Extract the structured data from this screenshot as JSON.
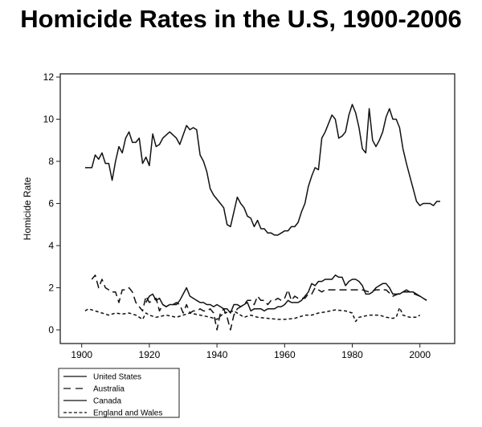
{
  "chart_data": {
    "type": "line",
    "title": "Homicide Rates in the U.S, 1900-2006",
    "xlabel": "",
    "ylabel": "Homicide Rate",
    "xlim": [
      1895,
      2011
    ],
    "ylim": [
      -0.6,
      12.2
    ],
    "xticks": [
      1900,
      1920,
      1940,
      1960,
      1980,
      2000
    ],
    "yticks": [
      0,
      2,
      4,
      6,
      8,
      10,
      12
    ],
    "grid": false,
    "legend_position": "bottom-left",
    "series": [
      {
        "name": "United States",
        "dash": "solid",
        "x": [
          1901,
          1903,
          1904,
          1905,
          1906,
          1907,
          1908,
          1909,
          1910,
          1911,
          1912,
          1913,
          1914,
          1915,
          1916,
          1917,
          1918,
          1919,
          1920,
          1921,
          1922,
          1923,
          1924,
          1926,
          1928,
          1929,
          1931,
          1932,
          1933,
          1934,
          1935,
          1936,
          1937,
          1938,
          1939,
          1941,
          1942,
          1943,
          1944,
          1946,
          1947,
          1948,
          1949,
          1950,
          1951,
          1952,
          1953,
          1954,
          1955,
          1956,
          1957,
          1958,
          1959,
          1960,
          1961,
          1962,
          1963,
          1964,
          1965,
          1966,
          1967,
          1968,
          1969,
          1970,
          1971,
          1972,
          1973,
          1974,
          1975,
          1976,
          1977,
          1978,
          1979,
          1980,
          1981,
          1982,
          1983,
          1984,
          1985,
          1986,
          1987,
          1988,
          1989,
          1990,
          1991,
          1992,
          1993,
          1994,
          1995,
          1996,
          1997,
          1998,
          1999,
          2000,
          2001,
          2002,
          2003,
          2004,
          2005,
          2006
        ],
        "y": [
          7.7,
          7.7,
          8.3,
          8.1,
          8.4,
          7.9,
          7.9,
          7.1,
          8.0,
          8.7,
          8.4,
          9.1,
          9.4,
          8.9,
          8.9,
          9.1,
          7.9,
          8.2,
          7.8,
          9.3,
          8.7,
          8.8,
          9.1,
          9.4,
          9.1,
          8.8,
          9.7,
          9.5,
          9.6,
          9.5,
          8.3,
          8.0,
          7.5,
          6.7,
          6.4,
          6.0,
          5.8,
          5.0,
          4.9,
          6.3,
          6.0,
          5.8,
          5.4,
          5.3,
          4.9,
          5.2,
          4.8,
          4.8,
          4.6,
          4.6,
          4.5,
          4.5,
          4.6,
          4.7,
          4.7,
          4.9,
          4.9,
          5.1,
          5.6,
          6.0,
          6.8,
          7.3,
          7.7,
          7.6,
          9.1,
          9.4,
          9.8,
          10.2,
          10.0,
          9.1,
          9.2,
          9.4,
          10.2,
          10.7,
          10.3,
          9.6,
          8.6,
          8.4,
          10.5,
          9.0,
          8.7,
          9.0,
          9.4,
          10.1,
          10.5,
          10.0,
          10.0,
          9.6,
          8.6,
          7.9,
          7.3,
          6.7,
          6.1,
          5.9,
          6.0,
          6.0,
          6.0,
          5.9,
          6.1,
          6.1
        ]
      },
      {
        "name": "Australia",
        "dash": "long-dash",
        "x": [
          1903,
          1904,
          1905,
          1906,
          1907,
          1908,
          1909,
          1910,
          1911,
          1912,
          1913,
          1914,
          1915,
          1916,
          1917,
          1918,
          1919,
          1920,
          1921,
          1922,
          1923,
          1924,
          1925,
          1926,
          1927,
          1928,
          1929,
          1930,
          1931,
          1932,
          1933,
          1934,
          1935,
          1936,
          1937,
          1938,
          1939,
          1940,
          1941,
          1942,
          1943,
          1944,
          1945,
          1946,
          1947,
          1948,
          1949,
          1950,
          1951,
          1952,
          1953,
          1954,
          1955,
          1956,
          1957,
          1958,
          1959,
          1960,
          1961,
          1962,
          1963,
          1964,
          1965,
          1966,
          1967,
          1968,
          1969,
          1970,
          1971,
          1972,
          1973,
          1975,
          1977,
          1979,
          1981,
          1983,
          1985,
          1987,
          1990,
          1992,
          1995,
          1997,
          2000,
          2002
        ],
        "y": [
          2.4,
          2.6,
          2.0,
          2.4,
          2.0,
          1.9,
          1.8,
          1.8,
          1.3,
          1.9,
          1.9,
          2.0,
          1.8,
          1.3,
          1.1,
          0.9,
          1.6,
          1.3,
          1.4,
          1.5,
          0.9,
          1.2,
          1.1,
          1.2,
          1.2,
          1.3,
          1.2,
          0.8,
          1.2,
          0.8,
          0.9,
          0.9,
          1.0,
          0.9,
          0.9,
          1.0,
          0.8,
          0.0,
          0.8,
          1.0,
          0.6,
          0.0,
          0.7,
          1.0,
          1.1,
          1.2,
          1.4,
          1.4,
          1.2,
          1.6,
          1.4,
          1.4,
          1.2,
          1.4,
          1.4,
          1.5,
          1.4,
          1.5,
          1.9,
          1.4,
          1.6,
          1.5,
          1.5,
          1.5,
          1.7,
          1.7,
          2.0,
          1.9,
          1.8,
          1.9,
          1.9,
          1.9,
          1.9,
          1.9,
          1.9,
          1.9,
          1.8,
          1.9,
          1.9,
          1.6,
          1.8,
          1.8,
          1.6,
          1.4
        ]
      },
      {
        "name": "Canada",
        "dash": "solid",
        "x": [
          1919,
          1920,
          1921,
          1922,
          1923,
          1924,
          1925,
          1926,
          1927,
          1928,
          1929,
          1930,
          1931,
          1932,
          1933,
          1934,
          1935,
          1936,
          1937,
          1938,
          1939,
          1940,
          1941,
          1942,
          1943,
          1944,
          1945,
          1946,
          1947,
          1948,
          1949,
          1950,
          1951,
          1952,
          1953,
          1954,
          1955,
          1956,
          1957,
          1958,
          1959,
          1960,
          1961,
          1962,
          1963,
          1964,
          1965,
          1966,
          1967,
          1968,
          1969,
          1970,
          1971,
          1972,
          1973,
          1974,
          1975,
          1976,
          1977,
          1978,
          1979,
          1980,
          1981,
          1982,
          1983,
          1984,
          1985,
          1986,
          1987,
          1988,
          1989,
          1990,
          1991,
          1992,
          1993,
          1994,
          1995,
          1996,
          1997,
          1998,
          1999,
          2000,
          2001,
          2002
        ],
        "y": [
          1.3,
          1.6,
          1.7,
          1.4,
          1.5,
          1.2,
          1.1,
          1.2,
          1.2,
          1.2,
          1.4,
          1.7,
          2.0,
          1.6,
          1.5,
          1.4,
          1.3,
          1.3,
          1.2,
          1.2,
          1.1,
          1.2,
          1.1,
          1.0,
          1.0,
          0.8,
          1.2,
          1.2,
          1.1,
          1.2,
          1.3,
          0.9,
          1.0,
          1.0,
          1.0,
          0.9,
          1.0,
          1.0,
          1.0,
          1.1,
          1.1,
          1.2,
          1.4,
          1.3,
          1.3,
          1.3,
          1.4,
          1.6,
          1.8,
          2.2,
          2.1,
          2.3,
          2.3,
          2.4,
          2.4,
          2.4,
          2.6,
          2.5,
          2.5,
          2.1,
          2.3,
          2.4,
          2.4,
          2.3,
          2.1,
          1.7,
          1.7,
          1.8,
          2.0,
          2.1,
          2.2,
          2.2,
          2.0,
          1.7,
          1.7,
          1.7,
          1.8,
          1.9,
          1.8,
          1.8,
          1.7,
          1.6,
          1.5,
          1.4
        ]
      },
      {
        "name": "England and Wales",
        "dash": "short-dash",
        "x": [
          1901,
          1902,
          1904,
          1906,
          1908,
          1910,
          1912,
          1914,
          1916,
          1918,
          1919,
          1920,
          1922,
          1925,
          1928,
          1930,
          1932,
          1935,
          1938,
          1940,
          1942,
          1945,
          1948,
          1950,
          1952,
          1955,
          1958,
          1960,
          1963,
          1966,
          1968,
          1970,
          1972,
          1975,
          1978,
          1980,
          1981,
          1982,
          1985,
          1988,
          1990,
          1992,
          1993,
          1994,
          1995,
          1997,
          1999,
          2000
        ],
        "y": [
          0.9,
          1.0,
          0.9,
          0.8,
          0.7,
          0.8,
          0.75,
          0.8,
          0.7,
          0.5,
          0.8,
          0.7,
          0.6,
          0.7,
          0.6,
          0.7,
          0.8,
          0.7,
          0.6,
          0.5,
          0.8,
          0.9,
          0.6,
          0.7,
          0.6,
          0.55,
          0.5,
          0.5,
          0.55,
          0.7,
          0.7,
          0.8,
          0.85,
          0.95,
          0.9,
          0.8,
          0.4,
          0.6,
          0.7,
          0.7,
          0.6,
          0.55,
          0.6,
          1.05,
          0.7,
          0.6,
          0.6,
          0.7
        ]
      }
    ]
  }
}
